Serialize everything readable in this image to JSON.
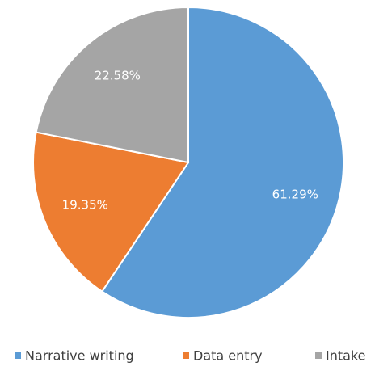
{
  "chart_data": {
    "type": "pie",
    "categories": [
      "Narrative writing",
      "Data entry",
      "Intake"
    ],
    "values": [
      61.29,
      19.35,
      22.58
    ],
    "value_labels": [
      "61.29%",
      "19.35%",
      "22.58%"
    ],
    "colors": [
      "#5b9bd5",
      "#ed7d31",
      "#a5a5a5"
    ],
    "legend": "bottom"
  }
}
